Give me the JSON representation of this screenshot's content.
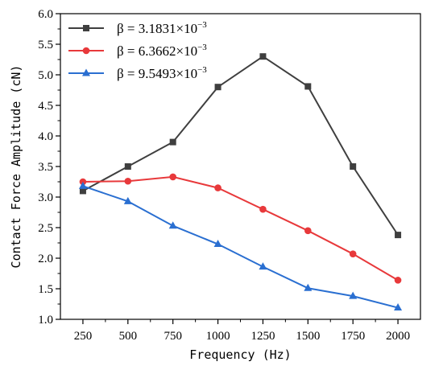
{
  "chart_data": {
    "type": "line",
    "xlabel": "Frequency (Hz)",
    "ylabel": "Contact Force Amplitude (cN)",
    "x": [
      250,
      500,
      750,
      1000,
      1250,
      1500,
      1750,
      2000
    ],
    "x_ticks": [
      "250",
      "500",
      "750",
      "1000",
      "1250",
      "1500",
      "1750",
      "2000"
    ],
    "y_ticks": [
      "1.0",
      "1.5",
      "2.0",
      "2.5",
      "3.0",
      "3.5",
      "4.0",
      "4.5",
      "5.0",
      "5.5",
      "6.0"
    ],
    "xlim": [
      125,
      2125
    ],
    "ylim": [
      1.0,
      6.0
    ],
    "grid": false,
    "legend_position": "top-left",
    "series": [
      {
        "name_base": "β = 3.1831×10",
        "name_exp": "−3",
        "color": "#3f3f3f",
        "marker": "square",
        "values": [
          3.1,
          3.5,
          3.9,
          4.8,
          5.3,
          4.81,
          3.5,
          2.38
        ]
      },
      {
        "name_base": "β = 6.3662×10",
        "name_exp": "−3",
        "color": "#e8393b",
        "marker": "circle",
        "values": [
          3.25,
          3.26,
          3.33,
          3.15,
          2.8,
          2.45,
          2.07,
          1.64
        ]
      },
      {
        "name_base": "β = 9.5493×10",
        "name_exp": "−3",
        "color": "#2a6fd1",
        "marker": "triangle",
        "values": [
          3.18,
          2.93,
          2.53,
          2.23,
          1.86,
          1.51,
          1.38,
          1.19
        ]
      }
    ]
  }
}
